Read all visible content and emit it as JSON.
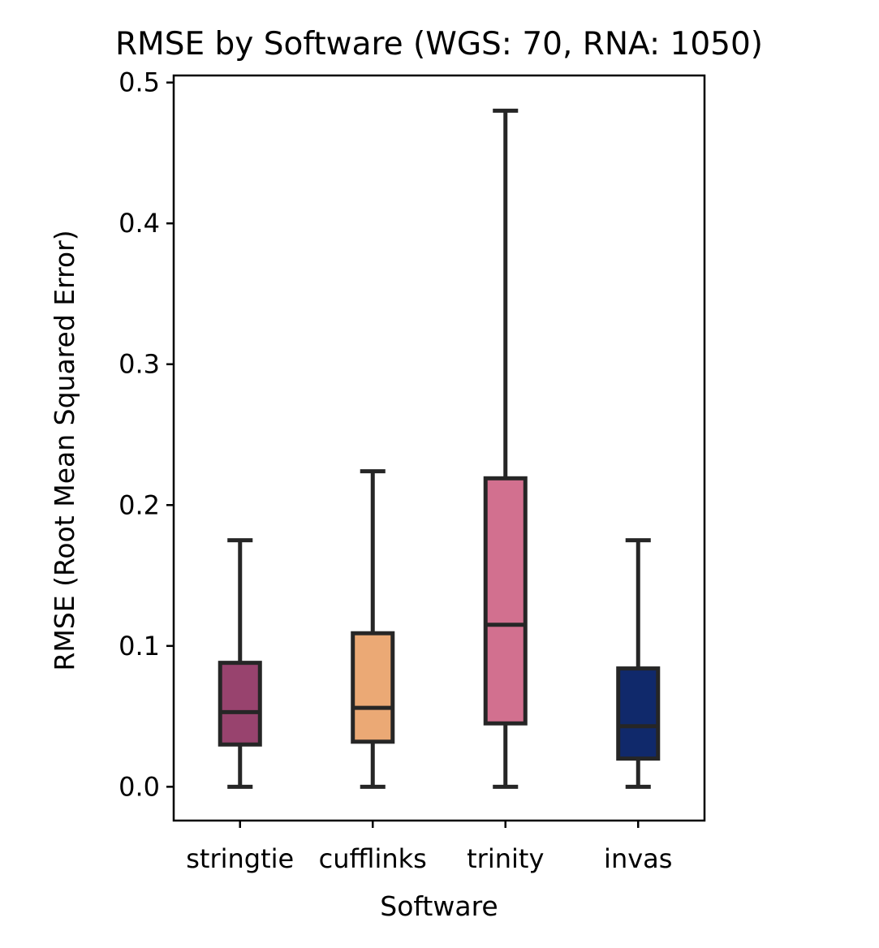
{
  "chart_data": {
    "type": "box",
    "title": "RMSE by Software (WGS: 70, RNA: 1050)",
    "xlabel": "Software",
    "ylabel": "RMSE (Root Mean Squared Error)",
    "ylim": [
      -0.024,
      0.505
    ],
    "yticks": [
      "0.0",
      "0.1",
      "0.2",
      "0.3",
      "0.4",
      "0.5"
    ],
    "categories": [
      "stringtie",
      "cufflinks",
      "trinity",
      "invas"
    ],
    "boxes": [
      {
        "category": "stringtie",
        "color": "#98436E",
        "whisker_low": 0.0,
        "q1": 0.03,
        "median": 0.053,
        "q3": 0.088,
        "whisker_high": 0.175
      },
      {
        "category": "cufflinks",
        "color": "#EBA975",
        "whisker_low": 0.0,
        "q1": 0.032,
        "median": 0.056,
        "q3": 0.109,
        "whisker_high": 0.224
      },
      {
        "category": "trinity",
        "color": "#D2708F",
        "whisker_low": 0.0,
        "q1": 0.045,
        "median": 0.115,
        "q3": 0.219,
        "whisker_high": 0.48
      },
      {
        "category": "invas",
        "color": "#10296B",
        "whisker_low": 0.0,
        "q1": 0.02,
        "median": 0.043,
        "q3": 0.084,
        "whisker_high": 0.175
      }
    ],
    "grid": false,
    "legend": "none"
  }
}
